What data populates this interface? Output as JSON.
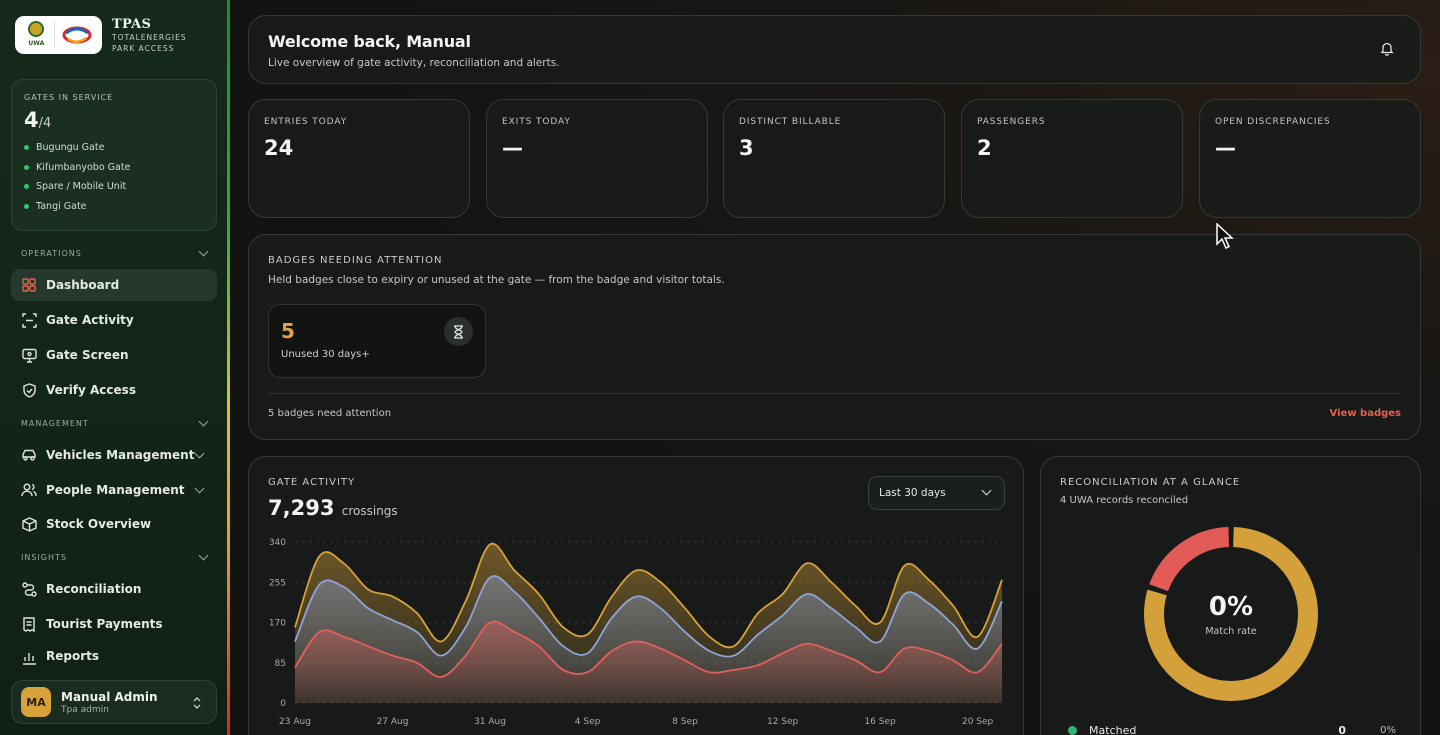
{
  "brand": {
    "logo_text": "UWA",
    "title": "TPAS",
    "subtitle_line1": "TOTALENERGIES",
    "subtitle_line2": "PARK ACCESS"
  },
  "gates": {
    "label": "GATES IN SERVICE",
    "active": "4",
    "total": "/4",
    "list": [
      "Bugungu Gate",
      "Kifumbanyobo Gate",
      "Spare / Mobile Unit",
      "Tangi Gate"
    ]
  },
  "nav": {
    "operations_label": "OPERATIONS",
    "management_label": "MANAGEMENT",
    "insights_label": "INSIGHTS",
    "items": {
      "dashboard": "Dashboard",
      "gate_activity": "Gate Activity",
      "gate_screen": "Gate Screen",
      "verify_access": "Verify Access",
      "vehicles": "Vehicles Management",
      "people": "People Management",
      "stock": "Stock Overview",
      "reconciliation": "Reconciliation",
      "tourist_payments": "Tourist Payments",
      "reports": "Reports"
    }
  },
  "user": {
    "initials": "MA",
    "name": "Manual Admin",
    "role": "Tpa admin"
  },
  "welcome": {
    "title": "Welcome back, Manual",
    "subtitle": "Live overview of gate activity, reconciliation and alerts."
  },
  "stats": [
    {
      "label": "ENTRIES TODAY",
      "value": "24"
    },
    {
      "label": "EXITS TODAY",
      "value": "—"
    },
    {
      "label": "DISTINCT BILLABLE",
      "value": "3"
    },
    {
      "label": "PASSENGERS",
      "value": "2"
    },
    {
      "label": "OPEN DISCREPANCIES",
      "value": "—"
    }
  ],
  "badges": {
    "label": "BADGES NEEDING ATTENTION",
    "description": "Held badges close to expiry or unused at the gate — from the badge and visitor totals.",
    "card_value": "5",
    "card_caption": "Unused 30 days+",
    "footer": "5 badges need attention",
    "link": "View badges"
  },
  "activity": {
    "label": "GATE ACTIVITY",
    "total": "7,293",
    "unit": "crossings",
    "range_selected": "Last 30 days"
  },
  "chart_data": {
    "type": "area",
    "title": "GATE ACTIVITY",
    "ylim": [
      0,
      340
    ],
    "yticks": [
      0,
      85,
      170,
      255,
      340
    ],
    "x_tick_labels": [
      "23 Aug",
      "27 Aug",
      "31 Aug",
      "4 Sep",
      "8 Sep",
      "12 Sep",
      "16 Sep",
      "20 Sep"
    ],
    "x": [
      "23 Aug",
      "24 Aug",
      "25 Aug",
      "26 Aug",
      "27 Aug",
      "28 Aug",
      "29 Aug",
      "30 Aug",
      "31 Aug",
      "1 Sep",
      "2 Sep",
      "3 Sep",
      "4 Sep",
      "5 Sep",
      "6 Sep",
      "7 Sep",
      "8 Sep",
      "9 Sep",
      "10 Sep",
      "11 Sep",
      "12 Sep",
      "13 Sep",
      "14 Sep",
      "15 Sep",
      "16 Sep",
      "17 Sep",
      "18 Sep",
      "19 Sep",
      "20 Sep",
      "21 Sep"
    ],
    "series": [
      {
        "color": "#e0605a",
        "values": [
          75,
          150,
          140,
          120,
          100,
          85,
          55,
          100,
          170,
          150,
          120,
          70,
          65,
          110,
          130,
          115,
          90,
          65,
          70,
          80,
          105,
          125,
          110,
          90,
          65,
          115,
          110,
          90,
          65,
          125
        ]
      },
      {
        "color": "#8ea4d8",
        "values": [
          130,
          250,
          245,
          200,
          175,
          150,
          100,
          160,
          265,
          235,
          180,
          120,
          105,
          180,
          225,
          200,
          150,
          110,
          100,
          145,
          185,
          230,
          200,
          160,
          130,
          230,
          210,
          165,
          115,
          215
        ]
      },
      {
        "color": "#d7a23a",
        "values": [
          160,
          310,
          295,
          240,
          225,
          190,
          130,
          215,
          335,
          280,
          230,
          160,
          145,
          225,
          280,
          255,
          200,
          140,
          120,
          190,
          230,
          295,
          255,
          205,
          170,
          290,
          260,
          205,
          140,
          260
        ]
      }
    ],
    "grid": true
  },
  "reconciliation": {
    "label": "RECONCILIATION AT A GLANCE",
    "subtitle": "4 UWA records reconciled",
    "rate_value": "0%",
    "rate_caption": "Match rate",
    "legend": [
      {
        "name": "Matched",
        "count": "0",
        "percent": "0%",
        "color": "#2fb673"
      }
    ],
    "donut_colors": [
      "#e25b57",
      "#d3a03a"
    ],
    "donut_fraction_red": 0.2
  }
}
